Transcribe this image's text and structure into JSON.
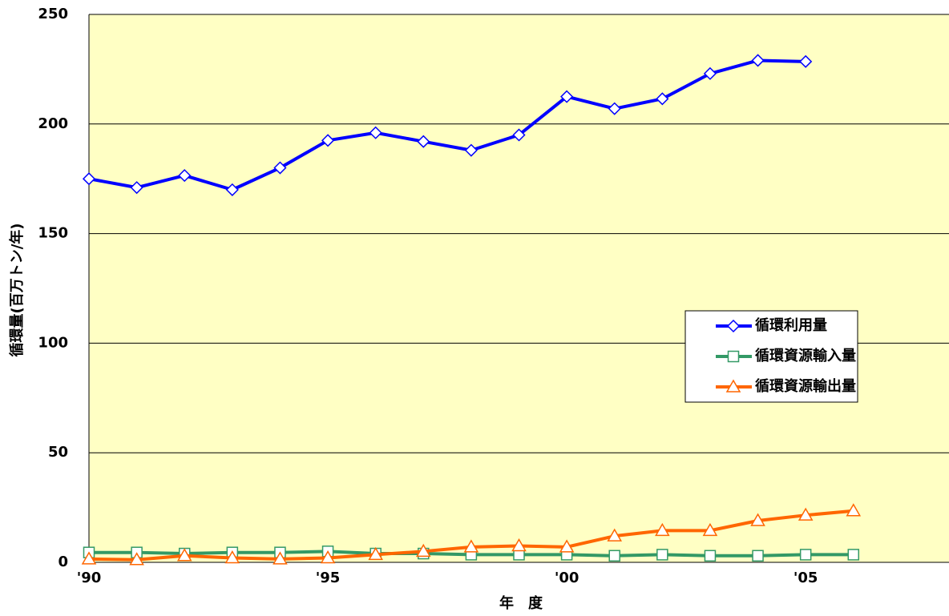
{
  "chart_data": {
    "type": "line",
    "x_label": "年　度",
    "y_label": "循環量(百万トン/年)",
    "x": [
      1990,
      1991,
      1992,
      1993,
      1994,
      1995,
      1996,
      1997,
      1998,
      1999,
      2000,
      2001,
      2002,
      2003,
      2004,
      2005,
      2006
    ],
    "series": [
      {
        "name": "循環利用量",
        "color": "#0000ff",
        "marker": "diamond",
        "values": [
          175,
          171,
          176.5,
          170,
          180,
          192.5,
          196,
          192,
          188,
          195,
          212.5,
          207,
          211.5,
          223,
          229,
          228.5,
          null
        ]
      },
      {
        "name": "循環資源輸入量",
        "color": "#339966",
        "marker": "square",
        "values": [
          4.5,
          4.5,
          4,
          4.5,
          4.5,
          5,
          4,
          4,
          3.5,
          3.5,
          3.5,
          3,
          3.5,
          3,
          3,
          3.5,
          3.5
        ]
      },
      {
        "name": "循環資源輸出量",
        "color": "#ff6600",
        "marker": "triangle",
        "values": [
          1.5,
          1.2,
          3,
          2,
          1.5,
          2,
          3.5,
          5,
          7,
          7.5,
          7,
          12,
          14.5,
          14.5,
          19,
          21.5,
          23.5
        ]
      }
    ],
    "xlim": [
      1990,
      2008
    ],
    "xticks": [
      {
        "value": 1990,
        "label": "'90"
      },
      {
        "value": 1995,
        "label": "'95"
      },
      {
        "value": 2000,
        "label": "'00"
      },
      {
        "value": 2005,
        "label": "'05"
      }
    ],
    "ylim": [
      0,
      250
    ],
    "yticks": [
      0,
      50,
      100,
      150,
      200,
      250
    ],
    "grid": true,
    "background": "#ffffc4",
    "legend": "right"
  }
}
